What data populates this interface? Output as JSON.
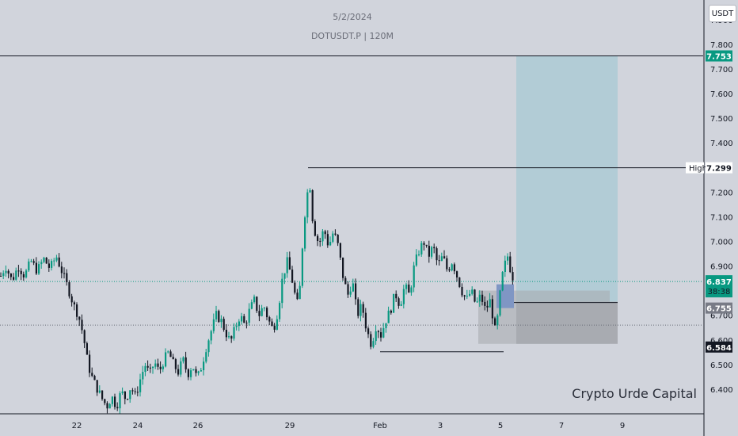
{
  "header": {
    "date": "5/2/2024",
    "symbol_line": "DOTUSDT.P | 120M"
  },
  "watermark": "Crypto Urde Capital",
  "currency": "USDT",
  "colors": {
    "background": "#d1d4dc",
    "up": "#089981",
    "down": "#131722",
    "profit_zone": "#b2ccd6",
    "loss_zone": "#a9abb1",
    "entry_box": "#7f96c4",
    "tp_tag": "#089981",
    "price_tag": "#089981",
    "stop_tag": "#131722"
  },
  "chart_data": {
    "type": "candlestick",
    "symbol": "DOTUSDT.P",
    "timeframe": "120M",
    "ylim": [
      6.3,
      7.98
    ],
    "y_ticks": [
      6.4,
      6.5,
      6.6,
      6.7,
      6.8,
      6.9,
      7.0,
      7.1,
      7.2,
      7.3,
      7.4,
      7.5,
      7.6,
      7.7,
      7.8,
      7.9
    ],
    "x_ticks": [
      "22",
      "24",
      "26",
      "29",
      "Feb",
      "3",
      "5",
      "7",
      "9"
    ],
    "levels": {
      "target": 7.753,
      "high": 7.299,
      "high_label": "High",
      "current": 6.837,
      "countdown": "38:38",
      "entry": 6.755,
      "stop": 6.584
    },
    "price_path": [
      {
        "t": 0,
        "p": 6.86
      },
      {
        "t": 6,
        "p": 6.9
      },
      {
        "t": 14,
        "p": 6.84
      },
      {
        "t": 22,
        "p": 6.9
      },
      {
        "t": 30,
        "p": 6.86
      },
      {
        "t": 38,
        "p": 6.92
      },
      {
        "t": 46,
        "p": 6.88
      },
      {
        "t": 54,
        "p": 6.93
      },
      {
        "t": 62,
        "p": 6.89
      },
      {
        "t": 70,
        "p": 6.94
      },
      {
        "t": 78,
        "p": 6.87
      },
      {
        "t": 86,
        "p": 6.8
      },
      {
        "t": 92,
        "p": 6.74
      },
      {
        "t": 98,
        "p": 6.7
      },
      {
        "t": 104,
        "p": 6.62
      },
      {
        "t": 110,
        "p": 6.5
      },
      {
        "t": 116,
        "p": 6.44
      },
      {
        "t": 122,
        "p": 6.4
      },
      {
        "t": 128,
        "p": 6.36
      },
      {
        "t": 134,
        "p": 6.33
      },
      {
        "t": 140,
        "p": 6.37
      },
      {
        "t": 146,
        "p": 6.33
      },
      {
        "t": 152,
        "p": 6.39
      },
      {
        "t": 158,
        "p": 6.36
      },
      {
        "t": 164,
        "p": 6.41
      },
      {
        "t": 170,
        "p": 6.37
      },
      {
        "t": 176,
        "p": 6.44
      },
      {
        "t": 182,
        "p": 6.5
      },
      {
        "t": 188,
        "p": 6.46
      },
      {
        "t": 194,
        "p": 6.51
      },
      {
        "t": 200,
        "p": 6.47
      },
      {
        "t": 206,
        "p": 6.52
      },
      {
        "t": 212,
        "p": 6.55
      },
      {
        "t": 218,
        "p": 6.5
      },
      {
        "t": 224,
        "p": 6.47
      },
      {
        "t": 230,
        "p": 6.52
      },
      {
        "t": 236,
        "p": 6.46
      },
      {
        "t": 242,
        "p": 6.5
      },
      {
        "t": 248,
        "p": 6.44
      },
      {
        "t": 254,
        "p": 6.5
      },
      {
        "t": 260,
        "p": 6.58
      },
      {
        "t": 266,
        "p": 6.64
      },
      {
        "t": 272,
        "p": 6.7
      },
      {
        "t": 278,
        "p": 6.68
      },
      {
        "t": 284,
        "p": 6.63
      },
      {
        "t": 290,
        "p": 6.59
      },
      {
        "t": 296,
        "p": 6.65
      },
      {
        "t": 302,
        "p": 6.7
      },
      {
        "t": 308,
        "p": 6.66
      },
      {
        "t": 314,
        "p": 6.72
      },
      {
        "t": 320,
        "p": 6.76
      },
      {
        "t": 326,
        "p": 6.7
      },
      {
        "t": 332,
        "p": 6.74
      },
      {
        "t": 338,
        "p": 6.68
      },
      {
        "t": 344,
        "p": 6.64
      },
      {
        "t": 350,
        "p": 6.72
      },
      {
        "t": 356,
        "p": 6.86
      },
      {
        "t": 362,
        "p": 6.92
      },
      {
        "t": 368,
        "p": 6.84
      },
      {
        "t": 374,
        "p": 6.74
      },
      {
        "t": 378,
        "p": 6.82
      },
      {
        "t": 382,
        "p": 7.05
      },
      {
        "t": 386,
        "p": 7.18
      },
      {
        "t": 390,
        "p": 7.24
      },
      {
        "t": 394,
        "p": 7.08
      },
      {
        "t": 398,
        "p": 7.02
      },
      {
        "t": 402,
        "p": 6.99
      },
      {
        "t": 408,
        "p": 7.05
      },
      {
        "t": 414,
        "p": 6.98
      },
      {
        "t": 420,
        "p": 7.04
      },
      {
        "t": 426,
        "p": 6.98
      },
      {
        "t": 432,
        "p": 6.86
      },
      {
        "t": 438,
        "p": 6.78
      },
      {
        "t": 444,
        "p": 6.84
      },
      {
        "t": 450,
        "p": 6.7
      },
      {
        "t": 456,
        "p": 6.74
      },
      {
        "t": 462,
        "p": 6.64
      },
      {
        "t": 468,
        "p": 6.58
      },
      {
        "t": 474,
        "p": 6.66
      },
      {
        "t": 480,
        "p": 6.62
      },
      {
        "t": 486,
        "p": 6.68
      },
      {
        "t": 492,
        "p": 6.72
      },
      {
        "t": 498,
        "p": 6.79
      },
      {
        "t": 504,
        "p": 6.74
      },
      {
        "t": 510,
        "p": 6.82
      },
      {
        "t": 516,
        "p": 6.78
      },
      {
        "t": 522,
        "p": 6.9
      },
      {
        "t": 528,
        "p": 6.96
      },
      {
        "t": 534,
        "p": 7.0
      },
      {
        "t": 540,
        "p": 6.94
      },
      {
        "t": 546,
        "p": 6.98
      },
      {
        "t": 552,
        "p": 6.9
      },
      {
        "t": 558,
        "p": 6.94
      },
      {
        "t": 564,
        "p": 6.88
      },
      {
        "t": 570,
        "p": 6.92
      },
      {
        "t": 576,
        "p": 6.86
      },
      {
        "t": 582,
        "p": 6.8
      },
      {
        "t": 588,
        "p": 6.76
      },
      {
        "t": 594,
        "p": 6.8
      },
      {
        "t": 600,
        "p": 6.74
      },
      {
        "t": 606,
        "p": 6.78
      },
      {
        "t": 612,
        "p": 6.72
      },
      {
        "t": 618,
        "p": 6.76
      },
      {
        "t": 624,
        "p": 6.64
      },
      {
        "t": 628,
        "p": 6.7
      },
      {
        "t": 632,
        "p": 6.84
      },
      {
        "t": 636,
        "p": 6.9
      },
      {
        "t": 640,
        "p": 6.94
      },
      {
        "t": 644,
        "p": 6.88
      },
      {
        "t": 648,
        "p": 6.84
      }
    ]
  }
}
